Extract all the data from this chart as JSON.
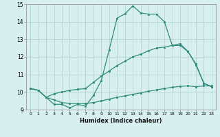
{
  "xlabel": "Humidex (Indice chaleur)",
  "x": [
    0,
    1,
    2,
    3,
    4,
    5,
    6,
    7,
    8,
    9,
    10,
    11,
    12,
    13,
    14,
    15,
    16,
    17,
    18,
    19,
    20,
    21,
    22,
    23
  ],
  "line1": [
    10.2,
    10.1,
    9.7,
    9.3,
    9.3,
    9.1,
    9.3,
    9.2,
    9.8,
    10.65,
    12.4,
    14.2,
    14.45,
    14.9,
    14.5,
    14.43,
    14.43,
    14.0,
    12.65,
    12.65,
    12.3,
    11.6,
    10.5,
    10.3
  ],
  "line2": [
    10.2,
    10.1,
    9.7,
    9.9,
    10.0,
    10.1,
    10.15,
    10.2,
    10.55,
    10.9,
    11.2,
    11.5,
    11.75,
    12.0,
    12.15,
    12.35,
    12.5,
    12.55,
    12.65,
    12.75,
    12.3,
    11.55,
    10.5,
    10.3
  ],
  "line3": [
    10.2,
    10.1,
    9.7,
    9.55,
    9.4,
    9.35,
    9.35,
    9.35,
    9.4,
    9.5,
    9.6,
    9.7,
    9.78,
    9.87,
    9.95,
    10.05,
    10.12,
    10.2,
    10.27,
    10.32,
    10.35,
    10.3,
    10.35,
    10.35
  ],
  "line_color": "#2e8b7a",
  "bg_color": "#d8efef",
  "grid_color": "#b8d8d8",
  "ylim": [
    9.0,
    15.0
  ],
  "xlim": [
    -0.5,
    23.5
  ],
  "yticks": [
    9,
    10,
    11,
    12,
    13,
    14,
    15
  ],
  "xticks": [
    0,
    1,
    2,
    3,
    4,
    5,
    6,
    7,
    8,
    9,
    10,
    11,
    12,
    13,
    14,
    15,
    16,
    17,
    18,
    19,
    20,
    21,
    22,
    23
  ]
}
